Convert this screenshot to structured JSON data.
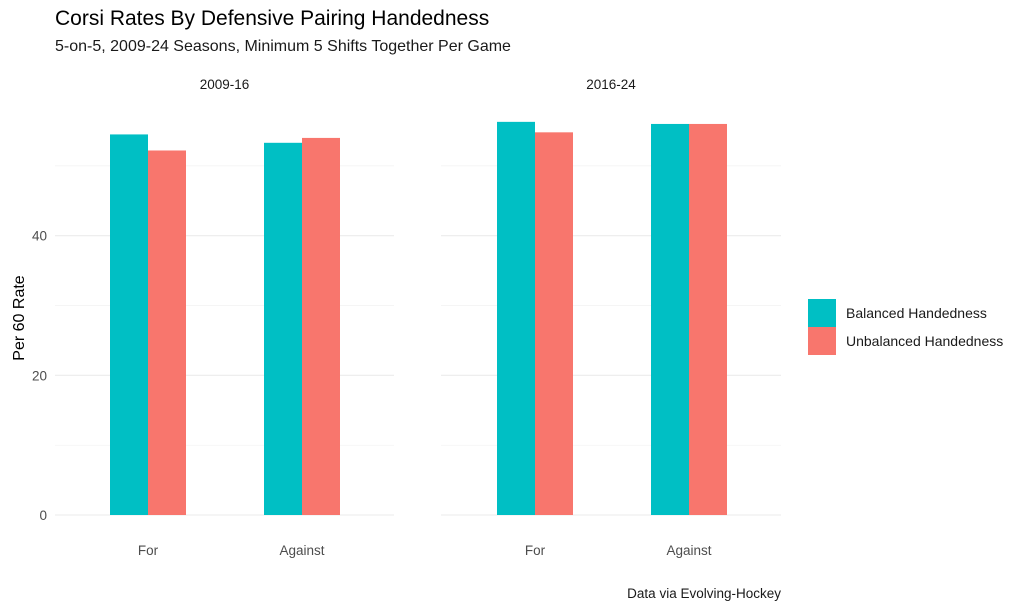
{
  "title": "Corsi Rates By Defensive Pairing Handedness",
  "subtitle": "5-on-5, 2009-24 Seasons, Minimum 5 Shifts Together Per Game",
  "caption": "Data via Evolving-Hockey",
  "chart_data": {
    "type": "bar",
    "ylabel": "Per 60 Rate",
    "xlabel": "",
    "ylim": [
      0,
      59
    ],
    "yticks": [
      "0",
      "20",
      "40"
    ],
    "categories": [
      "For",
      "Against"
    ],
    "legend": {
      "position": "right"
    },
    "series_colors": {
      "Balanced Handedness": "#00BFC4",
      "Unbalanced Handedness": "#F8766D"
    },
    "panels": [
      {
        "label": "2009-16",
        "series": [
          {
            "name": "Balanced Handedness",
            "values": [
              54.5,
              53.3
            ]
          },
          {
            "name": "Unbalanced Handedness",
            "values": [
              52.2,
              54.0
            ]
          }
        ]
      },
      {
        "label": "2016-24",
        "series": [
          {
            "name": "Balanced Handedness",
            "values": [
              56.3,
              56.0
            ]
          },
          {
            "name": "Unbalanced Handedness",
            "values": [
              54.8,
              56.0
            ]
          }
        ]
      }
    ]
  }
}
